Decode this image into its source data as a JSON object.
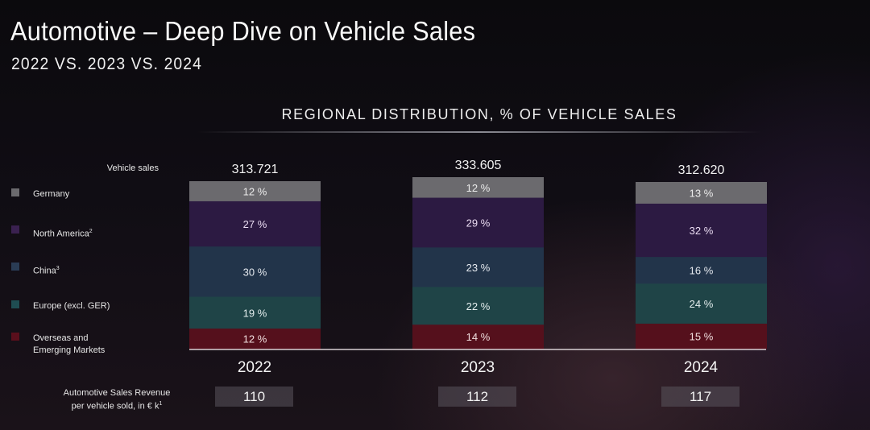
{
  "header": {
    "title": "Automotive – Deep Dive on Vehicle Sales",
    "subtitle": "2022 VS. 2023 VS. 2024"
  },
  "chart_data": {
    "type": "bar",
    "stacked": true,
    "normalized_percent": true,
    "title": "REGIONAL DISTRIBUTION, % OF VEHICLE SALES",
    "categories": [
      "2022",
      "2023",
      "2024"
    ],
    "totals_label": "Vehicle sales",
    "totals": [
      "313.721",
      "333.605",
      "312.620"
    ],
    "series": [
      {
        "name": "Germany",
        "name_sup": "",
        "color": "#6b6a6e",
        "values": [
          12,
          12,
          13
        ]
      },
      {
        "name": "North America",
        "name_sup": "2",
        "color": "#2e1b43",
        "values": [
          27,
          29,
          32
        ]
      },
      {
        "name": "China",
        "name_sup": "3",
        "color": "#233449",
        "values": [
          30,
          23,
          16
        ]
      },
      {
        "name": "Europe (excl. GER)",
        "name_sup": "",
        "color": "#1f4548",
        "values": [
          19,
          22,
          24
        ]
      },
      {
        "name": "Overseas and Emerging Markets",
        "name_sup": "",
        "color": "#55101c",
        "values": [
          12,
          14,
          15
        ]
      }
    ],
    "value_suffix": " %",
    "legend_placement": "left",
    "grid": false
  },
  "legend": [
    {
      "label": "Germany",
      "sup": ""
    },
    {
      "label": "North America",
      "sup": "2"
    },
    {
      "label": "China",
      "sup": "3"
    },
    {
      "label": "Europe (excl. GER)",
      "sup": ""
    },
    {
      "label_line1": "Overseas and",
      "label_line2": "Emerging Markets",
      "sup": ""
    }
  ],
  "revenue": {
    "label_line1": "Automotive Sales Revenue",
    "label_line2": "per vehicle sold, in € k",
    "label_sup": "1",
    "values": [
      "110",
      "112",
      "117"
    ]
  },
  "colors": {
    "germany": "#6b6a6e",
    "north_america": "#2e1b43",
    "china": "#233449",
    "europe": "#1f4548",
    "overseas": "#55101c"
  }
}
